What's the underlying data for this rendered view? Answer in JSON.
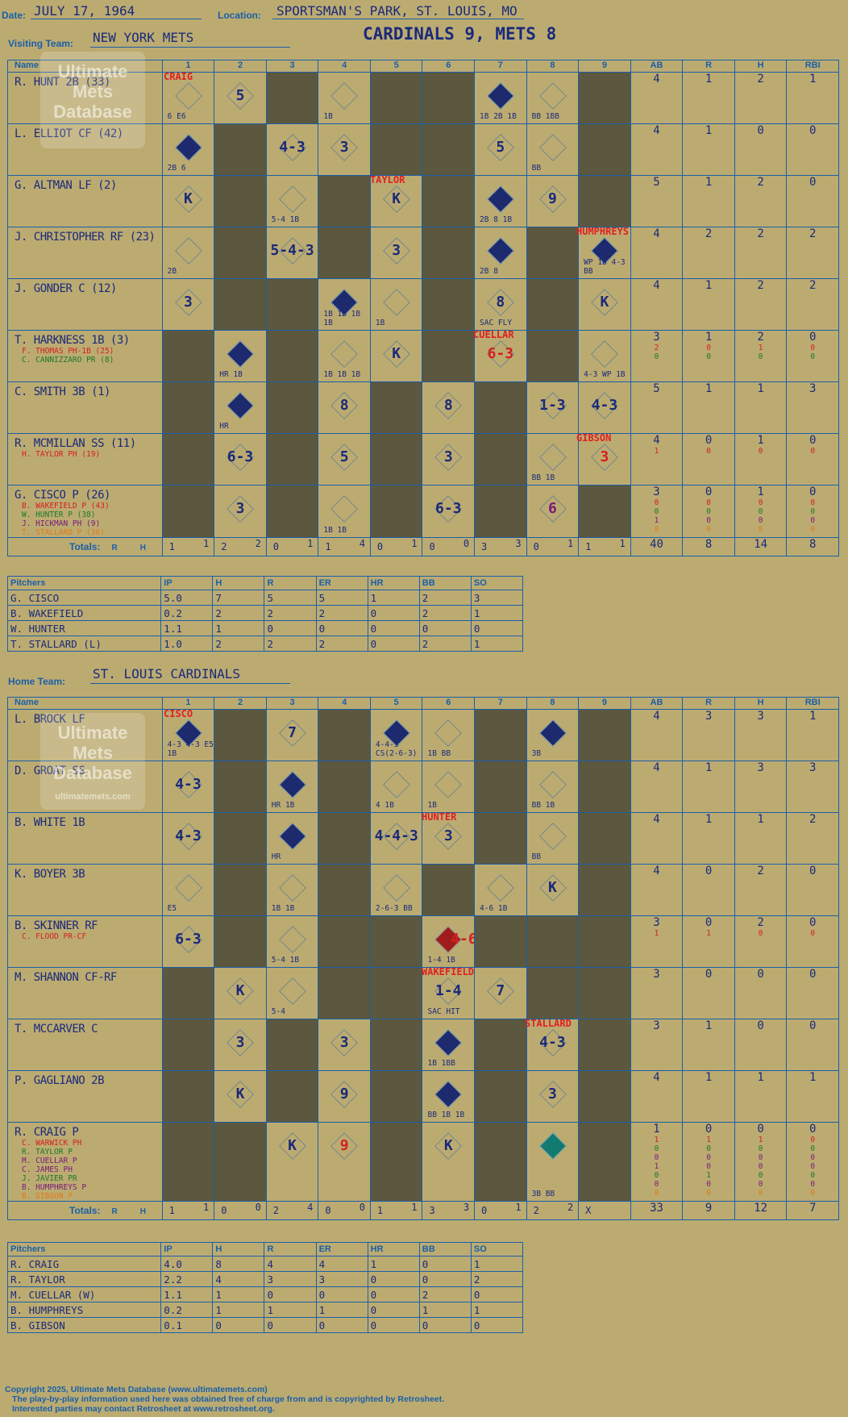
{
  "header": {
    "date_label": "Date:",
    "date": "JULY 17, 1964",
    "location_label": "Location:",
    "location": "SPORTSMAN'S PARK, ST. LOUIS, MO",
    "visiting_label": "Visiting Team:",
    "visiting_team": "NEW YORK METS",
    "final_score": "CARDINALS 9, METS 8",
    "home_label": "Home Team:",
    "home_team": "ST. LOUIS CARDINALS"
  },
  "columns": {
    "name": "Name",
    "innings": [
      "1",
      "2",
      "3",
      "4",
      "5",
      "6",
      "7",
      "8",
      "9"
    ],
    "stats": [
      "AB",
      "R",
      "H",
      "RBI"
    ]
  },
  "totals_label": "Totals:",
  "rh_label": {
    "r": "R",
    "h": "H"
  },
  "visiting_batters": [
    {
      "name": "R. HUNT 2B (33)",
      "subs": [],
      "stats": [
        "4",
        "1",
        "2",
        "1"
      ],
      "substats": []
    },
    {
      "name": "L. ELLIOT CF (42)",
      "subs": [],
      "stats": [
        "4",
        "1",
        "0",
        "0"
      ],
      "substats": []
    },
    {
      "name": "G. ALTMAN LF (2)",
      "subs": [],
      "stats": [
        "5",
        "1",
        "2",
        "0"
      ],
      "substats": []
    },
    {
      "name": "J. CHRISTOPHER RF (23)",
      "subs": [],
      "stats": [
        "4",
        "2",
        "2",
        "2"
      ],
      "substats": []
    },
    {
      "name": "J. GONDER C (12)",
      "subs": [],
      "stats": [
        "4",
        "1",
        "2",
        "2"
      ],
      "substats": []
    },
    {
      "name": "T. HARKNESS 1B (3)",
      "subs": [
        {
          "text": "F. THOMAS PH-1B (25)",
          "color": "red"
        },
        {
          "text": "C. CANNIZZARO PR (8)",
          "color": "green"
        }
      ],
      "stats": [
        "3",
        "1",
        "2",
        "0"
      ],
      "substats": [
        [
          "2",
          "0",
          "1",
          "0"
        ],
        [
          "0",
          "0",
          "0",
          "0"
        ]
      ]
    },
    {
      "name": "C. SMITH 3B (1)",
      "subs": [],
      "stats": [
        "5",
        "1",
        "1",
        "3"
      ],
      "substats": []
    },
    {
      "name": "R. MCMILLAN SS (11)",
      "subs": [
        {
          "text": "H. TAYLOR PH (19)",
          "color": "red"
        }
      ],
      "stats": [
        "4",
        "0",
        "1",
        "0"
      ],
      "substats": [
        [
          "1",
          "0",
          "0",
          "0"
        ]
      ]
    },
    {
      "name": "G. CISCO P (26)",
      "subs": [
        {
          "text": "B. WAKEFIELD P (43)",
          "color": "red"
        },
        {
          "text": "W. HUNTER P (38)",
          "color": "green"
        },
        {
          "text": "J. HICKMAN PH (9)",
          "color": "purple"
        },
        {
          "text": "T. STALLARD P (36)",
          "color": "orange"
        }
      ],
      "stats": [
        "3",
        "0",
        "1",
        "0"
      ],
      "substats": [
        [
          "0",
          "0",
          "0",
          "0"
        ],
        [
          "0",
          "0",
          "0",
          "0"
        ],
        [
          "1",
          "0",
          "0",
          "0"
        ],
        [
          "0",
          "0",
          "0",
          "0"
        ]
      ]
    }
  ],
  "visiting_plays": [
    [
      {
        "t": "",
        "n": "6 E6",
        "d": "line"
      },
      {
        "t": "5"
      },
      {
        "dk": true
      },
      {
        "n": "1B",
        "d": "line"
      },
      {
        "dk": true
      },
      {
        "dk": true
      },
      {
        "n": "1B 2B 1B",
        "d": "filled"
      },
      {
        "n": "BB 1BB",
        "d": "line"
      },
      {
        "dk": true
      }
    ],
    [
      {
        "n": "2B 6",
        "d": "filled"
      },
      {
        "dk": true
      },
      {
        "t": "4-3"
      },
      {
        "t": "3"
      },
      {
        "dk": true
      },
      {
        "dk": true
      },
      {
        "t": "5"
      },
      {
        "n": "BB",
        "d": "line"
      },
      {
        "dk": true
      }
    ],
    [
      {
        "t": "K"
      },
      {
        "dk": true
      },
      {
        "n": "5-4 1B",
        "d": "line"
      },
      {
        "dk": true
      },
      {
        "t": "K"
      },
      {
        "dk": true
      },
      {
        "n": "2B 8 1B",
        "d": "filled"
      },
      {
        "t": "9"
      },
      {
        "dk": true
      }
    ],
    [
      {
        "n": "2B",
        "d": "line"
      },
      {
        "dk": true
      },
      {
        "t": "5-4-3"
      },
      {
        "dk": true
      },
      {
        "t": "3"
      },
      {
        "dk": true
      },
      {
        "n": "2B 8",
        "d": "filled"
      },
      {
        "dk": true
      },
      {
        "n": "WP 1B 4-3 BB",
        "d": "filled"
      }
    ],
    [
      {
        "t": "3"
      },
      {
        "dk": true
      },
      {
        "dk": true
      },
      {
        "n": "1B 1B 1B 1B",
        "d": "filled"
      },
      {
        "n": "1B",
        "d": "line"
      },
      {
        "dk": true
      },
      {
        "t": "8",
        "n": "SAC FLY"
      },
      {
        "dk": true
      },
      {
        "t": "K"
      }
    ],
    [
      {
        "dk": true
      },
      {
        "n": "HR 1B",
        "d": "filled"
      },
      {
        "dk": true
      },
      {
        "n": "1B 1B 1B",
        "d": "line"
      },
      {
        "t": "K"
      },
      {
        "dk": true
      },
      {
        "t": "6-3",
        "c": "red"
      },
      {
        "dk": true
      },
      {
        "n": "4-3 WP 1B",
        "d": "line"
      }
    ],
    [
      {
        "dk": true
      },
      {
        "n": "HR",
        "d": "filled"
      },
      {
        "dk": true
      },
      {
        "t": "8"
      },
      {
        "dk": true
      },
      {
        "t": "8"
      },
      {
        "dk": true
      },
      {
        "t": "1-3"
      },
      {
        "t": "4-3"
      }
    ],
    [
      {
        "dk": true
      },
      {
        "t": "6-3"
      },
      {
        "dk": true
      },
      {
        "t": "5"
      },
      {
        "dk": true
      },
      {
        "t": "3"
      },
      {
        "dk": true
      },
      {
        "n": "BB 1B",
        "d": "line"
      },
      {
        "t": "3",
        "c": "red"
      }
    ],
    [
      {
        "dk": true
      },
      {
        "t": "3"
      },
      {
        "dk": true
      },
      {
        "n": "1B 1B",
        "d": "line"
      },
      {
        "dk": true
      },
      {
        "t": "6-3"
      },
      {
        "dk": true
      },
      {
        "t": "6",
        "c": "purple"
      },
      {
        "dk": true
      }
    ]
  ],
  "visiting_pitcher_notes": [
    {
      "text": "CRAIG",
      "row": 0,
      "col": 0
    },
    {
      "text": "TAYLOR",
      "row": 2,
      "col": 4
    },
    {
      "text": "HUMPHREYS",
      "row": 3,
      "col": 8
    },
    {
      "text": "CUELLAR",
      "row": 5,
      "col": 6
    },
    {
      "text": "GIBSON",
      "row": 7,
      "col": 8
    }
  ],
  "visiting_totals": {
    "rh": [
      [
        "1",
        "1"
      ],
      [
        "2",
        "2"
      ],
      [
        "0",
        "1"
      ],
      [
        "1",
        "4"
      ],
      [
        "0",
        "1"
      ],
      [
        "0",
        "0"
      ],
      [
        "3",
        "3"
      ],
      [
        "0",
        "1"
      ],
      [
        "1",
        "1"
      ]
    ],
    "stats": [
      "40",
      "8",
      "14",
      "8"
    ]
  },
  "visiting_pitchers": {
    "header": [
      "Pitchers",
      "IP",
      "H",
      "R",
      "ER",
      "HR",
      "BB",
      "SO"
    ],
    "rows": [
      [
        "G. CISCO",
        "5.0",
        "7",
        "5",
        "5",
        "1",
        "2",
        "3"
      ],
      [
        "B. WAKEFIELD",
        "0.2",
        "2",
        "2",
        "2",
        "0",
        "2",
        "1"
      ],
      [
        "W. HUNTER",
        "1.1",
        "1",
        "0",
        "0",
        "0",
        "0",
        "0"
      ],
      [
        "T. STALLARD (L)",
        "1.0",
        "2",
        "2",
        "2",
        "0",
        "2",
        "1"
      ]
    ]
  },
  "home_batters": [
    {
      "name": "L. BROCK LF",
      "subs": [],
      "stats": [
        "4",
        "3",
        "3",
        "1"
      ],
      "substats": []
    },
    {
      "name": "D. GROAT SS",
      "subs": [],
      "stats": [
        "4",
        "1",
        "3",
        "3"
      ],
      "substats": []
    },
    {
      "name": "B. WHITE 1B",
      "subs": [],
      "stats": [
        "4",
        "1",
        "1",
        "2"
      ],
      "substats": []
    },
    {
      "name": "K. BOYER 3B",
      "subs": [],
      "stats": [
        "4",
        "0",
        "2",
        "0"
      ],
      "substats": []
    },
    {
      "name": "B. SKINNER RF",
      "subs": [
        {
          "text": "C. FLOOD PR-CF",
          "color": "red"
        }
      ],
      "stats": [
        "3",
        "0",
        "2",
        "0"
      ],
      "substats": [
        [
          "1",
          "1",
          "0",
          "0"
        ]
      ]
    },
    {
      "name": "M. SHANNON CF-RF",
      "subs": [],
      "stats": [
        "3",
        "0",
        "0",
        "0"
      ],
      "substats": []
    },
    {
      "name": "T. MCCARVER C",
      "subs": [],
      "stats": [
        "3",
        "1",
        "0",
        "0"
      ],
      "substats": []
    },
    {
      "name": "P. GAGLIANO 2B",
      "subs": [],
      "stats": [
        "4",
        "1",
        "1",
        "1"
      ],
      "substats": []
    },
    {
      "name": "R. CRAIG P",
      "subs": [
        {
          "text": "C. WARWICK PH",
          "color": "red"
        },
        {
          "text": "R. TAYLOR P",
          "color": "green"
        },
        {
          "text": "M. CUELLAR P",
          "color": "purple"
        },
        {
          "text": "C. JAMES PH",
          "color": "purple"
        },
        {
          "text": "J. JAVIER PR",
          "color": "green"
        },
        {
          "text": "B. HUMPHREYS P",
          "color": "purple"
        },
        {
          "text": "B. GIBSON P",
          "color": "orange"
        }
      ],
      "stats": [
        "1",
        "0",
        "0",
        "0"
      ],
      "substats": [
        [
          "1",
          "1",
          "1",
          "0"
        ],
        [
          "0",
          "0",
          "0",
          "0"
        ],
        [
          "0",
          "0",
          "0",
          "0"
        ],
        [
          "1",
          "0",
          "0",
          "0"
        ],
        [
          "0",
          "1",
          "0",
          "0"
        ],
        [
          "0",
          "0",
          "0",
          "0"
        ],
        [
          "0",
          "0",
          "0",
          "0"
        ]
      ]
    }
  ],
  "home_plays": [
    [
      {
        "n": "4-3 4-3 E5 1B",
        "d": "filled"
      },
      {
        "dk": true
      },
      {
        "t": "7"
      },
      {
        "dk": true
      },
      {
        "n": "4-4-3 CS(2-6-3)",
        "d": "filled"
      },
      {
        "n": "1B BB",
        "d": "line"
      },
      {
        "dk": true
      },
      {
        "n": "3B",
        "d": "filled"
      },
      {
        "dk": true
      }
    ],
    [
      {
        "t": "4-3"
      },
      {
        "dk": true
      },
      {
        "n": "HR 1B",
        "d": "filled"
      },
      {
        "dk": true
      },
      {
        "n": "4 1B",
        "d": "line"
      },
      {
        "n": "1B",
        "d": "line"
      },
      {
        "dk": true
      },
      {
        "n": "BB 1B",
        "d": "line"
      },
      {
        "dk": true
      }
    ],
    [
      {
        "t": "4-3"
      },
      {
        "dk": true
      },
      {
        "n": "HR",
        "d": "filled"
      },
      {
        "dk": true
      },
      {
        "t": "4-4-3"
      },
      {
        "t": "3"
      },
      {
        "dk": true
      },
      {
        "n": "BB",
        "d": "line"
      },
      {
        "dk": true
      }
    ],
    [
      {
        "n": "E5",
        "d": "line"
      },
      {
        "dk": true
      },
      {
        "n": "1B 1B",
        "d": "line"
      },
      {
        "dk": true
      },
      {
        "n": "2-6-3 BB",
        "d": "line"
      },
      {
        "dk": true
      },
      {
        "n": "4-6 1B",
        "d": "line"
      },
      {
        "t": "K"
      },
      {
        "dk": true
      }
    ],
    [
      {
        "t": "6-3"
      },
      {
        "dk": true
      },
      {
        "n": "5-4 1B",
        "d": "line"
      },
      {
        "dk": true
      },
      {
        "dk": true
      },
      {
        "n": "1-4 1B",
        "d": "red",
        "t2": "4-6-3"
      },
      {
        "dk": true
      },
      {
        "dk": true
      },
      {
        "dk": true
      }
    ],
    [
      {
        "dk": true
      },
      {
        "t": "K"
      },
      {
        "n": "5-4",
        "d": "line"
      },
      {
        "dk": true
      },
      {
        "dk": true
      },
      {
        "t": "1-4",
        "n": "SAC HIT"
      },
      {
        "t": "7"
      },
      {
        "dk": true
      },
      {
        "dk": true
      }
    ],
    [
      {
        "dk": true
      },
      {
        "t": "3"
      },
      {
        "dk": true
      },
      {
        "t": "3"
      },
      {
        "dk": true
      },
      {
        "n": "1B 1BB",
        "d": "filled"
      },
      {
        "dk": true
      },
      {
        "t": "4-3"
      },
      {
        "dk": true
      }
    ],
    [
      {
        "dk": true
      },
      {
        "t": "K"
      },
      {
        "dk": true
      },
      {
        "t": "9"
      },
      {
        "dk": true
      },
      {
        "n": "BB 1B 1B",
        "d": "filled"
      },
      {
        "dk": true
      },
      {
        "t": "3"
      },
      {
        "dk": true
      }
    ],
    [
      {
        "dk": true
      },
      {
        "dk": true
      },
      {
        "t": "K"
      },
      {
        "t": "9",
        "c": "red"
      },
      {
        "dk": true
      },
      {
        "t": "K"
      },
      {
        "dk": true
      },
      {
        "n": "3B BB",
        "d": "teal"
      },
      {
        "dk": true
      }
    ]
  ],
  "home_pitcher_notes": [
    {
      "text": "CISCO",
      "row": 0,
      "col": 0
    },
    {
      "text": "HUNTER",
      "row": 2,
      "col": 5
    },
    {
      "text": "WAKEFIELD",
      "row": 5,
      "col": 5
    },
    {
      "text": "STALLARD",
      "row": 6,
      "col": 7
    }
  ],
  "home_totals": {
    "rh": [
      [
        "1",
        "1"
      ],
      [
        "0",
        "0"
      ],
      [
        "2",
        "4"
      ],
      [
        "0",
        "0"
      ],
      [
        "1",
        "1"
      ],
      [
        "3",
        "3"
      ],
      [
        "0",
        "1"
      ],
      [
        "2",
        "2"
      ],
      [
        "X",
        ""
      ]
    ],
    "stats": [
      "33",
      "9",
      "12",
      "7"
    ]
  },
  "home_pitchers": {
    "header": [
      "Pitchers",
      "IP",
      "H",
      "R",
      "ER",
      "HR",
      "BB",
      "SO"
    ],
    "rows": [
      [
        "R. CRAIG",
        "4.0",
        "8",
        "4",
        "4",
        "1",
        "0",
        "1"
      ],
      [
        "R. TAYLOR",
        "2.2",
        "4",
        "3",
        "3",
        "0",
        "0",
        "2"
      ],
      [
        "M. CUELLAR (W)",
        "1.1",
        "1",
        "0",
        "0",
        "0",
        "2",
        "0"
      ],
      [
        "B. HUMPHREYS",
        "0.2",
        "1",
        "1",
        "1",
        "0",
        "1",
        "1"
      ],
      [
        "B. GIBSON",
        "0.1",
        "0",
        "0",
        "0",
        "0",
        "0",
        "0"
      ]
    ]
  },
  "logo": {
    "line1": "Ultimate",
    "line2": "Mets",
    "line3": "Database",
    "url": "ultimatemets.com"
  },
  "footer": [
    "Copyright 2025, Ultimate Mets Database (www.ultimatemets.com)",
    "The play-by-play information used here was obtained free of charge from and is copyrighted by Retrosheet.",
    "Interested parties may contact Retrosheet at www.retrosheet.org."
  ],
  "colors": {
    "background": "#bcab71",
    "lines": "#1a5fa8",
    "ink": "#1a2a7a",
    "dark_cell": "#5c573f",
    "note_red": "#d42020"
  }
}
